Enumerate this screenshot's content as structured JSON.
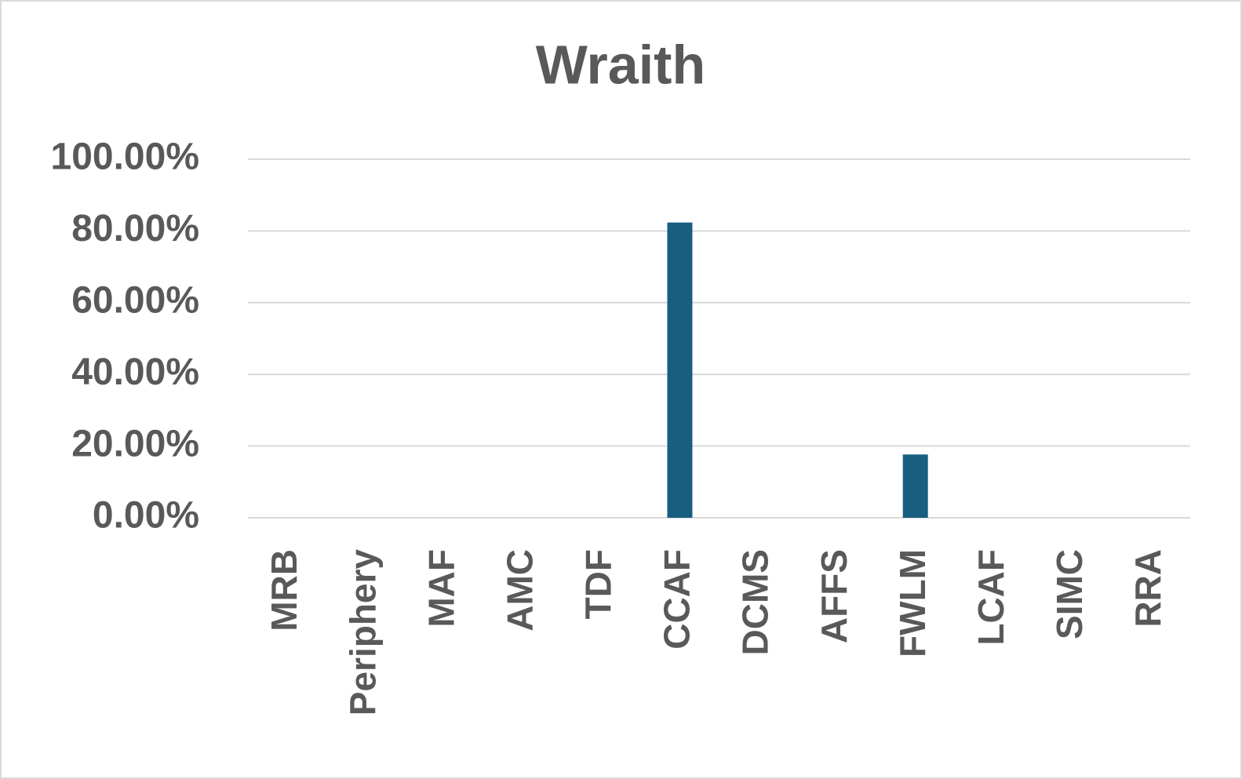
{
  "chart_data": {
    "type": "bar",
    "title": "Wraith",
    "categories": [
      "MRB",
      "Periphery",
      "MAF",
      "AMC",
      "TDF",
      "CCAF",
      "DCMS",
      "AFFS",
      "FWLM",
      "LCAF",
      "SIMC",
      "RRA"
    ],
    "values": [
      0,
      0,
      0,
      0,
      0,
      82.35,
      0,
      0,
      17.65,
      0,
      0,
      0
    ],
    "color": "#175e81",
    "ylim": [
      0,
      100
    ],
    "yticks": [
      {
        "value": 0,
        "label": "0.00%"
      },
      {
        "value": 20,
        "label": "20.00%"
      },
      {
        "value": 40,
        "label": "40.00%"
      },
      {
        "value": 60,
        "label": "60.00%"
      },
      {
        "value": 80,
        "label": "80.00%"
      },
      {
        "value": 100,
        "label": "100.00%"
      }
    ],
    "grid": true
  }
}
